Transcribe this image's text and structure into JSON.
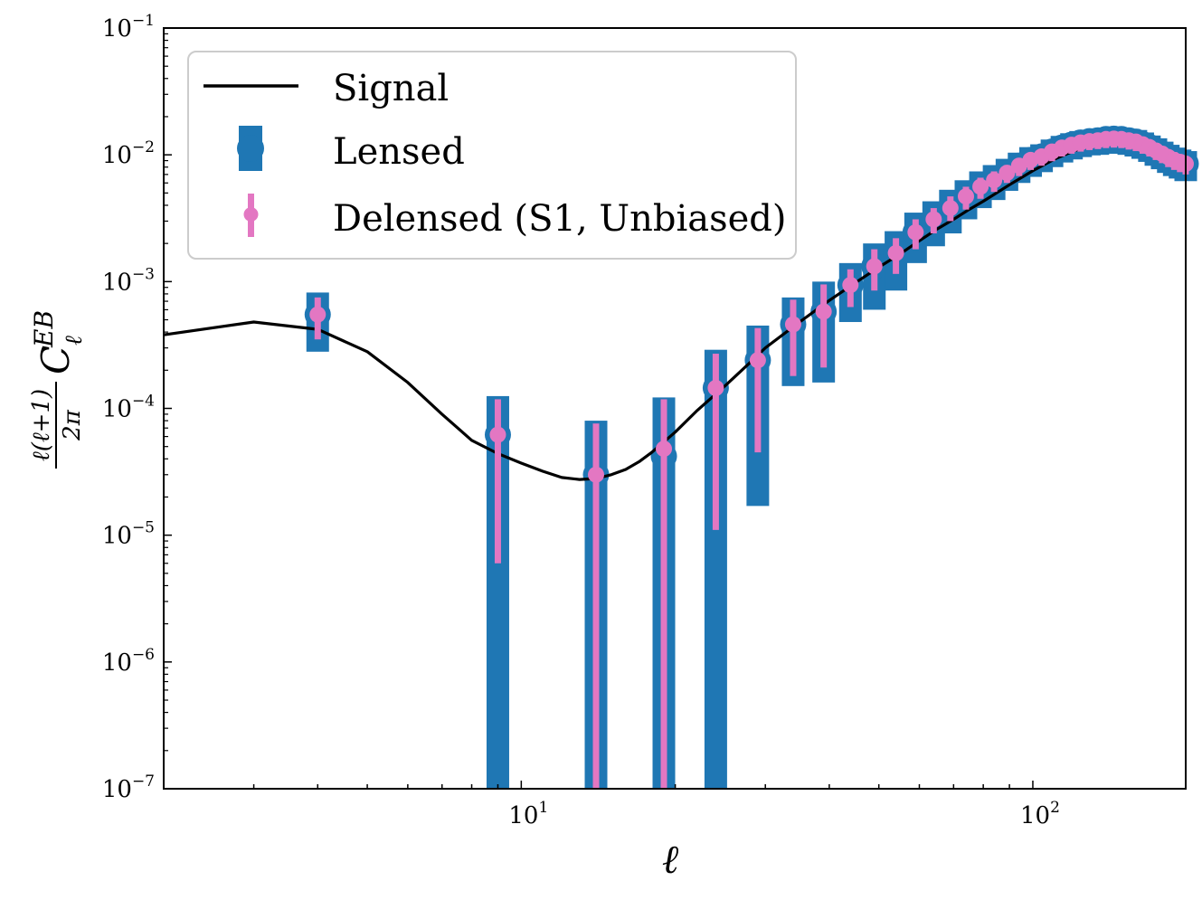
{
  "chart_data": {
    "type": "line",
    "title": "",
    "xlabel": "ℓ",
    "ylabel": {
      "numerator": "ℓ(ℓ+1)",
      "denominator": "2π",
      "symbol": "C",
      "superscript": "EB",
      "subscript": "ℓ"
    },
    "xscale": "log",
    "yscale": "log",
    "xlim": [
      2,
      199
    ],
    "ylim": [
      1e-07,
      0.1
    ],
    "x_ticks": [
      {
        "value": 10,
        "base": "10",
        "exp": "1"
      },
      {
        "value": 100,
        "base": "10",
        "exp": "2"
      }
    ],
    "y_ticks": [
      {
        "value": 1e-07,
        "base": "10",
        "exp": "−7"
      },
      {
        "value": 1e-06,
        "base": "10",
        "exp": "−6"
      },
      {
        "value": 1e-05,
        "base": "10",
        "exp": "−5"
      },
      {
        "value": 0.0001,
        "base": "10",
        "exp": "−4"
      },
      {
        "value": 0.001,
        "base": "10",
        "exp": "−3"
      },
      {
        "value": 0.01,
        "base": "10",
        "exp": "−2"
      },
      {
        "value": 0.1,
        "base": "10",
        "exp": "−1"
      }
    ],
    "grid": false,
    "legend": {
      "placement": "top-left",
      "entries": [
        "Signal",
        "Lensed",
        "Delensed (S1, Unbiased)"
      ]
    },
    "colors": {
      "signal": "#000000",
      "lensed": "#1f77b4",
      "delensed": "#e377c2"
    },
    "series": [
      {
        "name": "Signal",
        "kind": "line",
        "x": [
          2,
          3,
          4,
          5,
          6,
          7,
          8,
          9,
          10,
          11,
          12,
          13,
          14,
          15,
          16,
          17,
          18,
          20,
          22,
          25,
          28,
          30,
          35,
          40,
          45,
          50,
          55,
          60,
          65,
          70,
          75,
          80,
          90,
          100,
          110,
          120,
          130,
          140,
          150,
          160,
          170,
          180,
          190,
          199
        ],
        "y": [
          0.00038,
          0.00048,
          0.00042,
          0.00028,
          0.00016,
          9e-05,
          5.6e-05,
          4.4e-05,
          3.7e-05,
          3.2e-05,
          2.85e-05,
          2.75e-05,
          2.8e-05,
          3e-05,
          3.3e-05,
          3.8e-05,
          4.5e-05,
          6.5e-05,
          9.5e-05,
          0.00015,
          0.00023,
          0.0003,
          0.00048,
          0.00071,
          0.00098,
          0.0013,
          0.00165,
          0.0021,
          0.0026,
          0.0031,
          0.0037,
          0.0043,
          0.0058,
          0.0075,
          0.0092,
          0.0107,
          0.0118,
          0.0124,
          0.0124,
          0.0119,
          0.011,
          0.0098,
          0.0085,
          0.0074
        ]
      },
      {
        "name": "Lensed",
        "kind": "errorbar",
        "x": [
          4,
          9,
          14,
          19,
          24,
          29,
          34,
          39,
          44,
          49,
          54,
          59,
          64,
          69,
          74,
          79,
          84,
          89,
          94,
          99,
          104,
          109,
          114,
          119,
          124,
          129,
          134,
          139,
          144,
          149,
          154,
          159,
          164,
          169,
          174,
          179,
          184,
          189,
          194,
          199
        ],
        "y": [
          0.00055,
          6.2e-05,
          3e-05,
          4.2e-05,
          0.000145,
          0.00024,
          0.00046,
          0.00058,
          0.00094,
          0.00132,
          0.00168,
          0.00245,
          0.0031,
          0.0038,
          0.0047,
          0.0056,
          0.0063,
          0.0072,
          0.0082,
          0.0091,
          0.0097,
          0.0106,
          0.0114,
          0.012,
          0.0125,
          0.0128,
          0.013,
          0.0133,
          0.0134,
          0.0133,
          0.013,
          0.0127,
          0.0121,
          0.0115,
          0.0108,
          0.0102,
          0.0096,
          0.0091,
          0.0088,
          0.0085
        ],
        "ylow": [
          0.00028,
          1e-07,
          1e-07,
          1e-07,
          1e-07,
          1.7e-05,
          0.00015,
          0.00016,
          0.00048,
          0.0006,
          0.00085,
          0.0014,
          0.0019,
          0.0024,
          0.0031,
          0.0038,
          0.0044,
          0.0052,
          0.006,
          0.0067,
          0.0073,
          0.008,
          0.0087,
          0.0092,
          0.0096,
          0.0099,
          0.01,
          0.0102,
          0.0103,
          0.0102,
          0.01,
          0.0097,
          0.0093,
          0.0088,
          0.0082,
          0.0077,
          0.0072,
          0.0068,
          0.0065,
          0.0062
        ],
        "yhigh": [
          0.00082,
          0.000125,
          8e-05,
          0.000122,
          0.00029,
          0.00045,
          0.00075,
          0.001,
          0.0014,
          0.002,
          0.0025,
          0.0035,
          0.0043,
          0.0053,
          0.0063,
          0.0074,
          0.0083,
          0.0093,
          0.0104,
          0.0115,
          0.0121,
          0.0132,
          0.0141,
          0.0148,
          0.0154,
          0.0157,
          0.016,
          0.0163,
          0.0164,
          0.0163,
          0.016,
          0.0157,
          0.015,
          0.0142,
          0.0135,
          0.0127,
          0.012,
          0.0114,
          0.011,
          0.0107
        ]
      },
      {
        "name": "Delensed (S1, Unbiased)",
        "kind": "errorbar",
        "x": [
          4,
          9,
          14,
          19,
          24,
          29,
          34,
          39,
          44,
          49,
          54,
          59,
          64,
          69,
          74,
          79,
          84,
          89,
          94,
          99,
          104,
          109,
          114,
          119,
          124,
          129,
          134,
          139,
          144,
          149,
          154,
          159,
          164,
          169,
          174,
          179,
          184,
          189,
          194,
          199
        ],
        "y": [
          0.00055,
          6.2e-05,
          3e-05,
          4.8e-05,
          0.000145,
          0.00024,
          0.00046,
          0.00058,
          0.00094,
          0.00132,
          0.00168,
          0.00245,
          0.0031,
          0.0038,
          0.0047,
          0.0056,
          0.0063,
          0.0072,
          0.0082,
          0.0091,
          0.0097,
          0.0106,
          0.0114,
          0.012,
          0.0125,
          0.0128,
          0.013,
          0.0133,
          0.0134,
          0.0133,
          0.013,
          0.0127,
          0.0121,
          0.0115,
          0.0108,
          0.0102,
          0.0096,
          0.0091,
          0.0088,
          0.0085
        ],
        "ylow": [
          0.00035,
          6e-06,
          1e-07,
          1e-07,
          1.1e-05,
          4.5e-05,
          0.00018,
          0.00021,
          0.00063,
          0.00085,
          0.00115,
          0.0018,
          0.0024,
          0.003,
          0.0037,
          0.0045,
          0.0051,
          0.006,
          0.0068,
          0.0076,
          0.0082,
          0.0089,
          0.0097,
          0.0102,
          0.0106,
          0.0109,
          0.0111,
          0.0113,
          0.0114,
          0.0113,
          0.011,
          0.0107,
          0.0102,
          0.0097,
          0.0091,
          0.0086,
          0.008,
          0.0076,
          0.0073,
          0.007
        ],
        "yhigh": [
          0.00075,
          0.000118,
          7.6e-05,
          0.000118,
          0.00027,
          0.00043,
          0.00072,
          0.00095,
          0.00125,
          0.0018,
          0.0022,
          0.0031,
          0.0038,
          0.0047,
          0.0056,
          0.0066,
          0.0074,
          0.0083,
          0.0094,
          0.0104,
          0.0111,
          0.0121,
          0.013,
          0.0136,
          0.0142,
          0.0146,
          0.0148,
          0.0151,
          0.0152,
          0.0151,
          0.0148,
          0.0145,
          0.0138,
          0.0131,
          0.0124,
          0.0117,
          0.011,
          0.0105,
          0.0101,
          0.0098
        ]
      }
    ]
  }
}
